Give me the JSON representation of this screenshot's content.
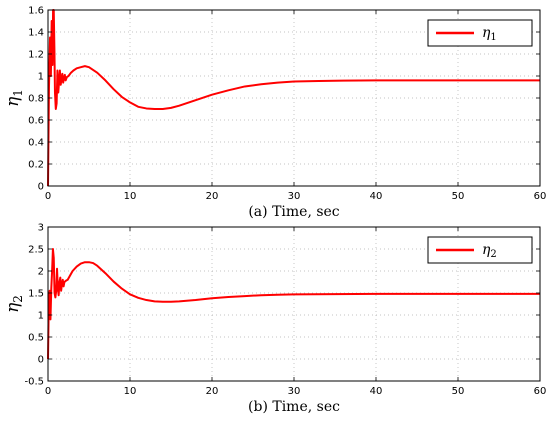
{
  "chart_data": [
    {
      "type": "line",
      "xlabel": "(a) Time, sec",
      "ylabel": "η",
      "ylabel_sub": "1",
      "xlim": [
        0,
        60
      ],
      "ylim": [
        0,
        1.6
      ],
      "xticks": [
        0,
        10,
        20,
        30,
        40,
        50,
        60
      ],
      "yticks": [
        0,
        0.2,
        0.4,
        0.6,
        0.8,
        1,
        1.2,
        1.4,
        1.6
      ],
      "xtick_labels": [
        "0",
        "10",
        "20",
        "30",
        "40",
        "50",
        "60"
      ],
      "ytick_labels": [
        "0",
        "0.2",
        "0.4",
        "0.6",
        "0.8",
        "1",
        "1.2",
        "1.4",
        "1.6"
      ],
      "grid": true,
      "legend_position": "top-right",
      "series": [
        {
          "name": "η",
          "name_sub": "1",
          "color": "#ff0000",
          "x": [
            0,
            0.12,
            0.25,
            0.35,
            0.45,
            0.55,
            0.62,
            0.7,
            0.78,
            0.85,
            0.95,
            1.05,
            1.15,
            1.25,
            1.35,
            1.45,
            1.55,
            1.65,
            1.75,
            1.85,
            1.95,
            2.05,
            2.15,
            2.3,
            2.5,
            2.8,
            3.1,
            3.5,
            4,
            4.5,
            5,
            6,
            7,
            8,
            9,
            10,
            11,
            12,
            13,
            14,
            15,
            16,
            18,
            20,
            22,
            24,
            26,
            28,
            30,
            33,
            36,
            40,
            45,
            50,
            55,
            60
          ],
          "values": [
            0,
            0.9,
            1.35,
            1.0,
            1.5,
            1.1,
            1.6,
            1.6,
            1.25,
            0.85,
            0.7,
            0.75,
            1.05,
            0.85,
            0.95,
            1.05,
            0.92,
            0.98,
            1.02,
            0.94,
            0.98,
            1.01,
            0.96,
            0.99,
            1.0,
            1.03,
            1.05,
            1.07,
            1.08,
            1.09,
            1.08,
            1.03,
            0.96,
            0.88,
            0.81,
            0.76,
            0.72,
            0.705,
            0.7,
            0.7,
            0.71,
            0.73,
            0.78,
            0.83,
            0.87,
            0.905,
            0.925,
            0.94,
            0.95,
            0.955,
            0.958,
            0.96,
            0.96,
            0.96,
            0.96,
            0.96
          ]
        }
      ]
    },
    {
      "type": "line",
      "xlabel": "(b) Time, sec",
      "ylabel": "η",
      "ylabel_sub": "2",
      "xlim": [
        0,
        60
      ],
      "ylim": [
        -0.5,
        3
      ],
      "xticks": [
        0,
        10,
        20,
        30,
        40,
        50,
        60
      ],
      "yticks": [
        -0.5,
        0,
        0.5,
        1,
        1.5,
        2,
        2.5,
        3
      ],
      "xtick_labels": [
        "0",
        "10",
        "20",
        "30",
        "40",
        "50",
        "60"
      ],
      "ytick_labels": [
        "-0.5",
        "0",
        "0.5",
        "1",
        "1.5",
        "2",
        "2.5",
        "3"
      ],
      "grid": true,
      "legend_position": "top-right",
      "series": [
        {
          "name": "η",
          "name_sub": "2",
          "color": "#ff0000",
          "x": [
            0,
            0.1,
            0.2,
            0.3,
            0.4,
            0.5,
            0.6,
            0.7,
            0.8,
            0.9,
            1.0,
            1.1,
            1.2,
            1.3,
            1.4,
            1.5,
            1.6,
            1.7,
            1.8,
            1.9,
            2.0,
            2.2,
            2.4,
            2.7,
            3.0,
            3.5,
            4,
            4.5,
            5,
            5.5,
            6,
            7,
            8,
            9,
            10,
            11,
            12,
            13,
            14,
            15,
            16,
            18,
            20,
            22,
            24,
            26,
            28,
            30,
            35,
            40,
            45,
            50,
            55,
            60
          ],
          "values": [
            0,
            1.3,
            1.55,
            0.9,
            1.6,
            2.0,
            2.5,
            2.3,
            1.5,
            1.4,
            1.55,
            2.05,
            1.6,
            1.45,
            1.75,
            1.85,
            1.55,
            1.7,
            1.8,
            1.65,
            1.75,
            1.78,
            1.8,
            1.9,
            2.0,
            2.1,
            2.17,
            2.2,
            2.2,
            2.18,
            2.12,
            1.95,
            1.76,
            1.6,
            1.47,
            1.39,
            1.34,
            1.31,
            1.3,
            1.3,
            1.31,
            1.34,
            1.38,
            1.41,
            1.43,
            1.45,
            1.46,
            1.47,
            1.475,
            1.48,
            1.48,
            1.48,
            1.48,
            1.48
          ]
        }
      ]
    }
  ]
}
